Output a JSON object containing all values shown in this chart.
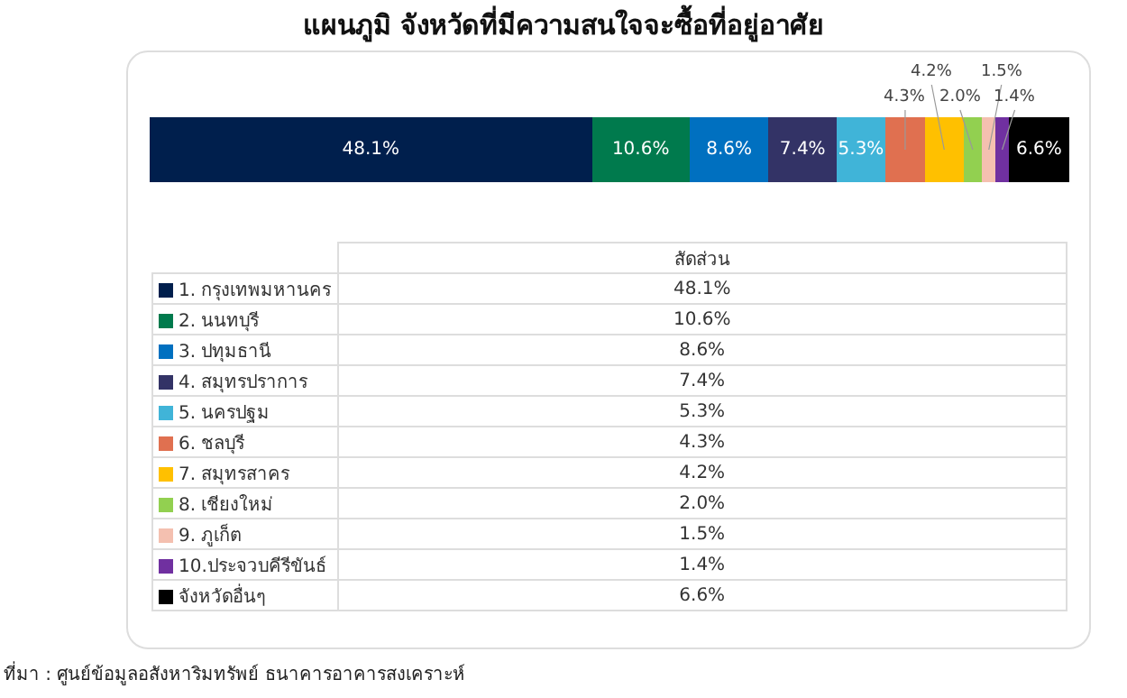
{
  "chart_data": {
    "type": "bar",
    "orientation": "horizontal",
    "stacked": true,
    "title": "แผนภูมิ จังหวัดที่มีความสนใจจะซื้อที่อยู่อาศัย",
    "categories": [
      null
    ],
    "legend": "bottom",
    "legend_title": "สัดส่วน",
    "series": [
      {
        "name": "1. กรุงเทพมหานคร",
        "color": "#001f4d",
        "values": [
          48.1
        ],
        "value_labels": [
          "48.1%"
        ]
      },
      {
        "name": "2. นนทบุรี",
        "color": "#007a4d",
        "values": [
          10.6
        ],
        "value_labels": [
          "10.6%"
        ]
      },
      {
        "name": "3. ปทุมธานี",
        "color": "#0070c0",
        "values": [
          8.6
        ],
        "value_labels": [
          "8.6%"
        ]
      },
      {
        "name": "4. สมุทรปราการ",
        "color": "#333366",
        "values": [
          7.4
        ],
        "value_labels": [
          "7.4%"
        ]
      },
      {
        "name": "5. นครปฐม",
        "color": "#40b4d8",
        "values": [
          5.3
        ],
        "value_labels": [
          "5.3%"
        ]
      },
      {
        "name": "6. ชลบุรี",
        "color": "#e07050",
        "values": [
          4.3
        ],
        "value_labels": [
          "4.3%"
        ]
      },
      {
        "name": "7. สมุทรสาคร",
        "color": "#ffc000",
        "values": [
          4.2
        ],
        "value_labels": [
          "4.2%"
        ]
      },
      {
        "name": "8. เชียงใหม่",
        "color": "#92d050",
        "values": [
          2.0
        ],
        "value_labels": [
          "2.0%"
        ]
      },
      {
        "name": "9. ภูเก็ต",
        "color": "#f4c0b0",
        "values": [
          1.5
        ],
        "value_labels": [
          "1.5%"
        ]
      },
      {
        "name": "10.ประจวบคีรีขันธ์",
        "color": "#7030a0",
        "values": [
          1.4
        ],
        "value_labels": [
          "1.4%"
        ]
      },
      {
        "name": "จังหวัดอื่นๆ",
        "color": "#000000",
        "values": [
          6.6
        ],
        "value_labels": [
          "6.6%"
        ]
      }
    ],
    "annotations": [
      "ที่มา : ศูนย์ข้อมูลอสังหาริมทรัพย์ ธนาคารอาคารสงเคราะห์"
    ]
  }
}
